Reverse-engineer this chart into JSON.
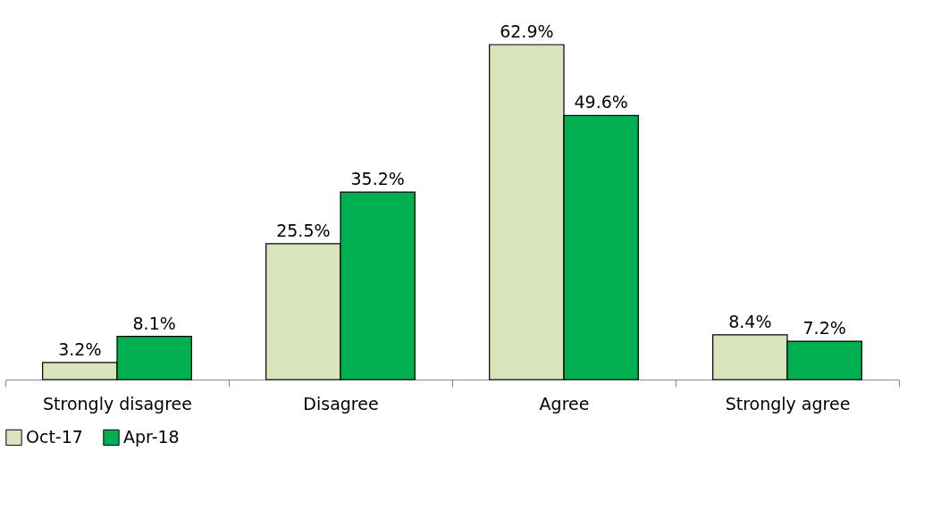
{
  "chart_data": {
    "type": "bar",
    "categories": [
      "Strongly disagree",
      "Disagree",
      "Agree",
      "Strongly agree"
    ],
    "series": [
      {
        "name": "Oct-17",
        "color": "#d8e4bc",
        "values": [
          3.2,
          25.5,
          62.9,
          8.4
        ],
        "value_labels": [
          "3.2%",
          "25.5%",
          "62.9%",
          "8.4%"
        ]
      },
      {
        "name": "Apr-18",
        "color": "#00b050",
        "values": [
          8.1,
          35.2,
          49.6,
          7.2
        ],
        "value_labels": [
          "8.1%",
          "35.2%",
          "49.6%",
          "7.2%"
        ]
      }
    ],
    "legend": "bottom",
    "grid": false,
    "tick_labels": "x"
  }
}
